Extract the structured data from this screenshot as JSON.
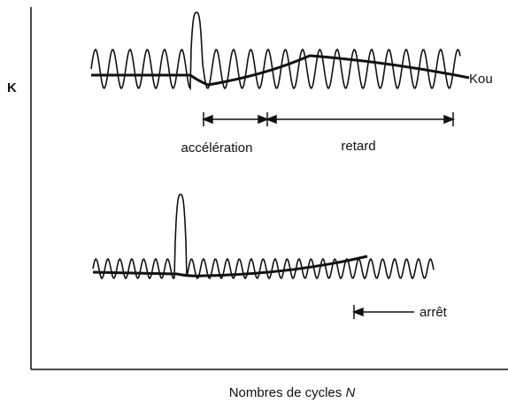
{
  "axis_label_y": "K",
  "curve_label": "Kou",
  "top_labels": [
    "accélération",
    "retard"
  ],
  "bottom_label": "arrêt",
  "axis_label_x": {
    "text": "Nombres de cycles ",
    "variable": "N"
  }
}
